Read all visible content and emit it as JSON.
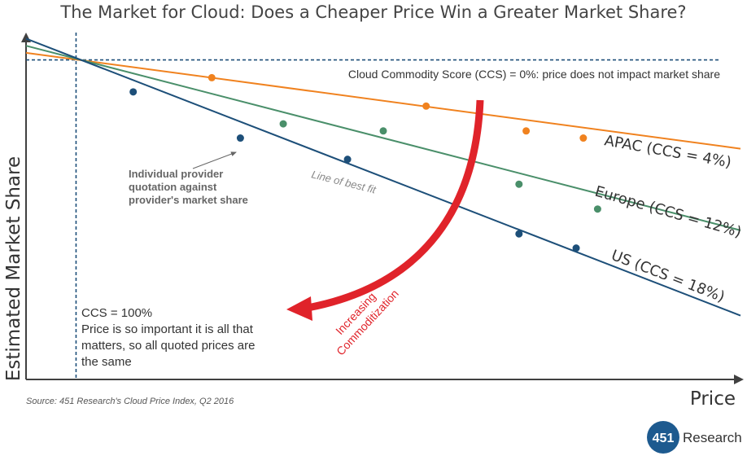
{
  "title": "The Market for Cloud: Does a Cheaper Price Win a Greater Market Share?",
  "colors": {
    "apac": "#f0821f",
    "europe": "#4a8f6a",
    "us": "#1d4f79",
    "ccs_zero": "#1d4f79",
    "arrow": "#e0232a",
    "axis": "#404040",
    "text": "#333333",
    "brand": "#1d5a8f"
  },
  "chart_data": {
    "type": "scatter",
    "title": "The Market for Cloud: Does a Cheaper Price Win a Greater Market Share?",
    "xlabel": "Price",
    "ylabel": "Estimated Market Share",
    "xlim": [
      0,
      100
    ],
    "ylim": [
      0,
      100
    ],
    "grid": false,
    "reference_lines": [
      {
        "name": "ccs-zero",
        "orientation": "horizontal",
        "value": 90,
        "label": "Cloud Commodity Score (CCS) = 0%: price does not impact market share"
      },
      {
        "name": "ccs-hundred",
        "orientation": "vertical",
        "value": 7,
        "label": "CCS = 100%"
      }
    ],
    "series": [
      {
        "name": "APAC",
        "label": "APAC (CCS = 4%)",
        "color_key": "apac",
        "fit": [
          [
            0,
            92
          ],
          [
            100,
            65
          ]
        ],
        "points": [
          [
            26,
            85
          ],
          [
            56,
            77
          ],
          [
            70,
            70
          ],
          [
            78,
            68
          ]
        ]
      },
      {
        "name": "Europe",
        "label": "Europe (CCS = 12%)",
        "color_key": "europe",
        "fit": [
          [
            0,
            94
          ],
          [
            100,
            42
          ]
        ],
        "points": [
          [
            36,
            72
          ],
          [
            50,
            70
          ],
          [
            69,
            55
          ],
          [
            80,
            48
          ]
        ]
      },
      {
        "name": "US",
        "label": "US (CCS = 18%)",
        "color_key": "us",
        "fit": [
          [
            0,
            96
          ],
          [
            100,
            18
          ]
        ],
        "points": [
          [
            15,
            81
          ],
          [
            30,
            68
          ],
          [
            45,
            62
          ],
          [
            69,
            41
          ],
          [
            77,
            37
          ]
        ]
      }
    ],
    "annotations": {
      "provider_note": [
        "Individual provider",
        "quotation against",
        "provider's market share"
      ],
      "best_fit": "Line of best fit",
      "arrow_label": [
        "Increasing",
        "Commoditization"
      ],
      "ccs_hundred_text": [
        "CCS = 100%",
        "Price is so important it is all that",
        "matters, so all quoted prices are",
        "the same"
      ]
    }
  },
  "source": "Source: 451 Research's Cloud Price Index, Q2 2016",
  "brand": {
    "badge": "451",
    "name": "Research"
  }
}
